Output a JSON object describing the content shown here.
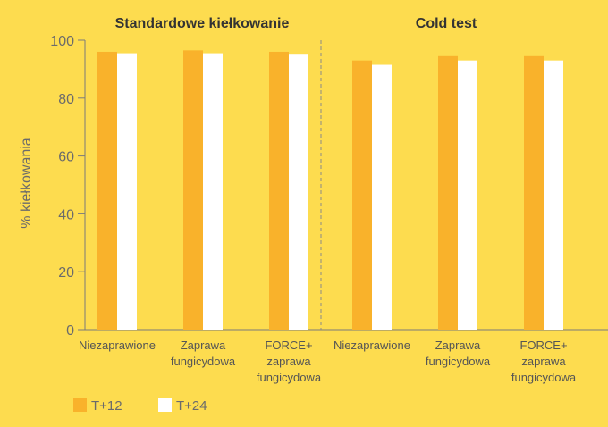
{
  "chart_data": {
    "type": "bar",
    "ylabel": "% kiełkowania",
    "ylim": [
      0,
      100
    ],
    "yticks": [
      0,
      20,
      40,
      60,
      80,
      100
    ],
    "grid": false,
    "legend_position": "bottom-left",
    "groups": [
      {
        "title": "Standardowe kiełkowanie",
        "categories": [
          [
            "Niezaprawione"
          ],
          [
            "Zaprawa",
            "fungicydowa"
          ],
          [
            "FORCE+",
            "zaprawa",
            "fungicydowa"
          ]
        ]
      },
      {
        "title": "Cold test",
        "categories": [
          [
            "Niezaprawione"
          ],
          [
            "Zaprawa",
            "fungicydowa"
          ],
          [
            "FORCE+",
            "zaprawa",
            "fungicydowa"
          ]
        ]
      }
    ],
    "series": [
      {
        "name": "T+12",
        "color": "#F9B22B",
        "values": [
          96,
          96.5,
          96,
          93,
          94.5,
          94.5
        ]
      },
      {
        "name": "T+24",
        "color": "#FFFFFF",
        "values": [
          95.5,
          95.5,
          95,
          91.5,
          93,
          93
        ]
      }
    ]
  }
}
